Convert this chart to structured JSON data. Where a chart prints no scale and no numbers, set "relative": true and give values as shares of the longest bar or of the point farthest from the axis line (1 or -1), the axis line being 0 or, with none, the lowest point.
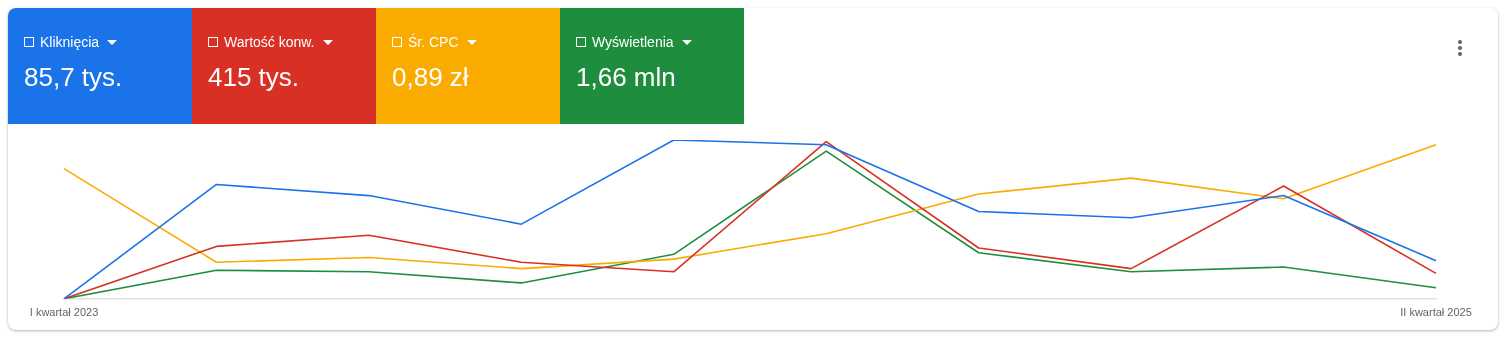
{
  "chart_data": {
    "type": "line",
    "relative": true,
    "grid": false,
    "legend": "top left",
    "marker": "none",
    "line_style": "solid",
    "categories": [
      "I kwartał 2023",
      null,
      null,
      null,
      null,
      null,
      null,
      null,
      null,
      "II kwartał 2025"
    ],
    "series": [
      {
        "name": "Kliknięcia",
        "color": "#1a73e8",
        "values": [
          0,
          0.72,
          0.65,
          0.47,
          1,
          0.97,
          0.55,
          0.51,
          0.65,
          0.24
        ]
      },
      {
        "name": "Wartość konw.",
        "color": "#d93025",
        "values": [
          0,
          0.33,
          0.4,
          0.23,
          0.17,
          0.99,
          0.32,
          0.19,
          0.71,
          0.16
        ]
      },
      {
        "name": "Śr. CPC",
        "color": "#f9ab00",
        "values": [
          0.82,
          0.23,
          0.26,
          0.19,
          0.25,
          0.41,
          0.66,
          0.76,
          0.63,
          0.97
        ]
      },
      {
        "name": "Wyświetlenia",
        "color": "#1e8e3e",
        "values": [
          0,
          0.18,
          0.17,
          0.1,
          0.28,
          0.93,
          0.29,
          0.17,
          0.2,
          0.07
        ]
      }
    ],
    "annotations": [
      "85,7 tys.",
      "415 tys.",
      "0,89 zł",
      "1,66 mln"
    ]
  }
}
